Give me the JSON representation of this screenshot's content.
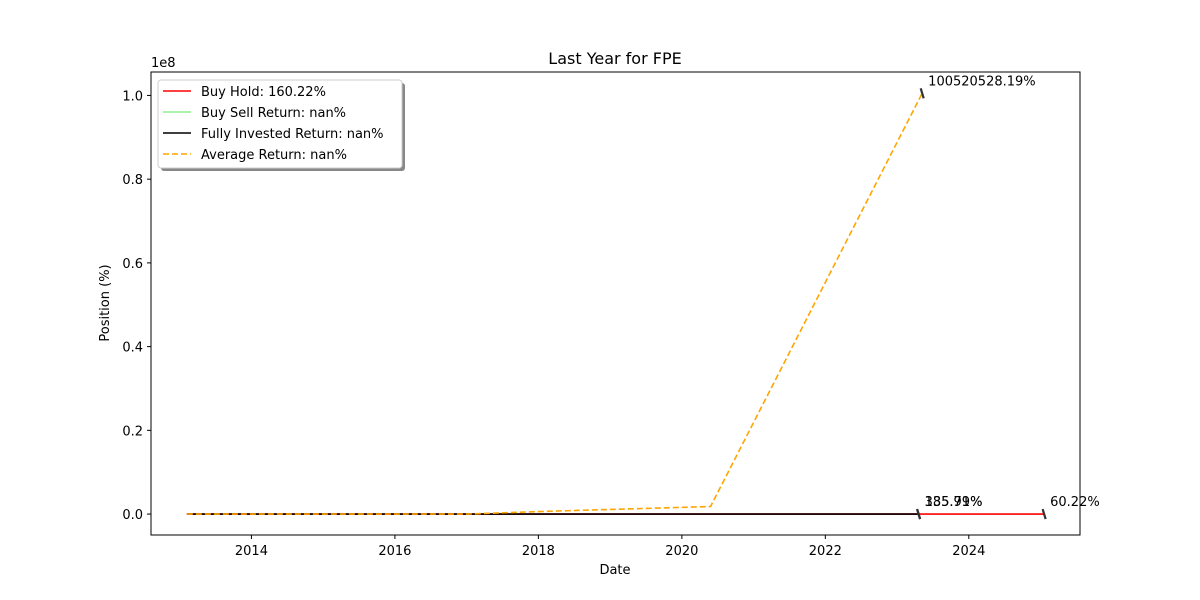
{
  "chart_data": {
    "type": "line",
    "title": "Last Year for FPE",
    "xlabel": "Date",
    "ylabel": "Position (%)",
    "y_offset_label": "1e8",
    "xlim": [
      2012.6,
      2025.55
    ],
    "ylim": [
      -5000000,
      105600000
    ],
    "x_ticks": [
      2014,
      2016,
      2018,
      2020,
      2022,
      2024
    ],
    "x_tick_labels": [
      "2014",
      "2016",
      "2018",
      "2020",
      "2022",
      "2024"
    ],
    "y_ticks": [
      0,
      20000000,
      40000000,
      60000000,
      80000000,
      100000000
    ],
    "y_tick_labels": [
      "0.0",
      "0.2",
      "0.4",
      "0.6",
      "0.8",
      "1.0"
    ],
    "grid": false,
    "legend_position": "top-left",
    "series": [
      {
        "name": "Buy Hold: 160.22%",
        "color": "#ff0000",
        "style": "solid",
        "points": [
          [
            2013.1,
            0
          ],
          [
            2016.0,
            0
          ],
          [
            2018.0,
            0
          ],
          [
            2020.4,
            0
          ],
          [
            2023.3,
            0
          ],
          [
            2025.05,
            0
          ]
        ]
      },
      {
        "name": "Buy Sell Return: nan%",
        "color": "#90ee90",
        "style": "solid",
        "points": []
      },
      {
        "name": "Fully Invested Return: nan%",
        "color": "#000000",
        "style": "solid",
        "points": [
          [
            2013.1,
            0
          ],
          [
            2016.0,
            0
          ],
          [
            2018.0,
            0
          ],
          [
            2020.4,
            0
          ],
          [
            2023.3,
            0
          ]
        ]
      },
      {
        "name": "Average Return: nan%",
        "color": "#ffa500",
        "style": "dashed",
        "points": [
          [
            2013.1,
            0
          ],
          [
            2017.0,
            0
          ],
          [
            2018.0,
            600000
          ],
          [
            2020.4,
            1800000
          ],
          [
            2023.35,
            100520528
          ]
        ]
      }
    ],
    "annotations": [
      {
        "text": "100520528.19%",
        "x": 2023.35,
        "y": 100520528
      },
      {
        "text": "185.79%",
        "x": 2023.3,
        "y": 0
      },
      {
        "text": "335.91%",
        "x": 2023.3,
        "y": 0
      },
      {
        "text": "60.22%",
        "x": 2025.05,
        "y": 0
      }
    ]
  }
}
